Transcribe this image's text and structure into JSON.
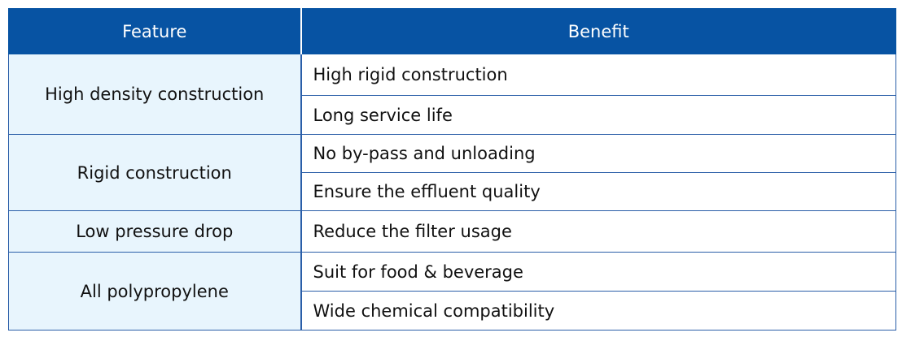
{
  "table": {
    "headers": [
      "Feature",
      "Benefit"
    ],
    "groups": [
      {
        "feature": "High density construction",
        "benefits": [
          "High rigid construction",
          "Long service life"
        ]
      },
      {
        "feature": "Rigid construction",
        "benefits": [
          "No by-pass and unloading",
          "Ensure the effluent quality"
        ]
      },
      {
        "feature": "Low pressure drop",
        "benefits": [
          "Reduce the filter usage"
        ]
      },
      {
        "feature": "All polypropylene",
        "benefits": [
          "Suit for food & beverage",
          "Wide chemical compatibility"
        ]
      }
    ]
  },
  "colors": {
    "header_bg": "#0753a3",
    "feature_bg": "#e8f5fd",
    "border": "#2a5ea8"
  }
}
